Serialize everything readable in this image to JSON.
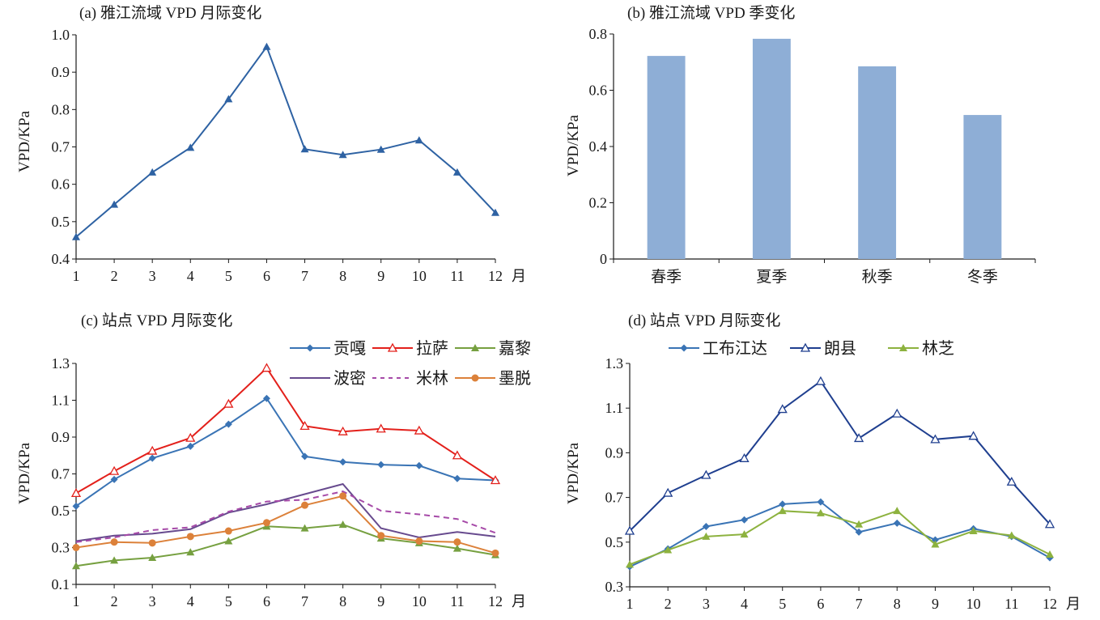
{
  "chart_data": [
    {
      "id": "a",
      "type": "line",
      "title": "(a) 雅江流域 VPD 月际变化",
      "xlabel": "",
      "ylabel": "VPD/KPa",
      "x_unit": "月",
      "categories": [
        "1",
        "2",
        "3",
        "4",
        "5",
        "6",
        "7",
        "8",
        "9",
        "10",
        "11",
        "12"
      ],
      "yticks": [
        "0.4",
        "0.5",
        "0.6",
        "0.7",
        "0.8",
        "0.9",
        "1.0"
      ],
      "ylim": [
        0.4,
        1.0
      ],
      "grid": false,
      "legend": null,
      "series": [
        {
          "name": "雅江流域",
          "color": "#2e62a3",
          "marker": "triangle",
          "dash": false,
          "values": [
            0.459,
            0.546,
            0.632,
            0.698,
            0.828,
            0.968,
            0.694,
            0.679,
            0.693,
            0.718,
            0.632,
            0.524
          ]
        }
      ]
    },
    {
      "id": "b",
      "type": "bar",
      "title": "(b) 雅江流域 VPD 季变化",
      "xlabel": "",
      "ylabel": "VPD/KPa",
      "categories": [
        "春季",
        "夏季",
        "秋季",
        "冬季"
      ],
      "yticks": [
        "0",
        "0.2",
        "0.4",
        "0.6",
        "0.8"
      ],
      "ylim": [
        0,
        0.8
      ],
      "grid": false,
      "bar_color": "#8eaed6",
      "values": [
        0.722,
        0.783,
        0.685,
        0.512
      ]
    },
    {
      "id": "c",
      "type": "line",
      "title": "(c) 站点 VPD 月际变化",
      "xlabel": "",
      "ylabel": "VPD/KPa",
      "x_unit": "月",
      "categories": [
        "1",
        "2",
        "3",
        "4",
        "5",
        "6",
        "7",
        "8",
        "9",
        "10",
        "11",
        "12"
      ],
      "yticks": [
        "0.1",
        "0.3",
        "0.5",
        "0.7",
        "0.9",
        "1.1",
        "1.3"
      ],
      "ylim": [
        0.1,
        1.3
      ],
      "grid": false,
      "legend": "top-right",
      "series": [
        {
          "name": "贡嘎",
          "color": "#3a74b5",
          "marker": "diamond",
          "dash": false,
          "values": [
            0.525,
            0.67,
            0.785,
            0.85,
            0.97,
            1.11,
            0.795,
            0.765,
            0.75,
            0.745,
            0.675,
            0.665
          ]
        },
        {
          "name": "拉萨",
          "color": "#e3201b",
          "marker": "triangle-open",
          "dash": false,
          "values": [
            0.595,
            0.715,
            0.825,
            0.895,
            1.08,
            1.275,
            0.96,
            0.93,
            0.945,
            0.935,
            0.8,
            0.665
          ]
        },
        {
          "name": "嘉黎",
          "color": "#76a040",
          "marker": "triangle",
          "dash": false,
          "values": [
            0.2,
            0.23,
            0.245,
            0.275,
            0.335,
            0.415,
            0.405,
            0.425,
            0.35,
            0.325,
            0.295,
            0.26
          ]
        },
        {
          "name": "波密",
          "color": "#674a8e",
          "marker": "none",
          "dash": false,
          "values": [
            0.335,
            0.365,
            0.375,
            0.4,
            0.49,
            0.535,
            0.59,
            0.645,
            0.405,
            0.355,
            0.385,
            0.36
          ]
        },
        {
          "name": "米林",
          "color": "#a64aa8",
          "marker": "none",
          "dash": true,
          "values": [
            0.33,
            0.355,
            0.395,
            0.41,
            0.495,
            0.55,
            0.56,
            0.605,
            0.5,
            0.48,
            0.455,
            0.38
          ]
        },
        {
          "name": "墨脱",
          "color": "#dc813a",
          "marker": "circle",
          "dash": false,
          "values": [
            0.3,
            0.33,
            0.325,
            0.36,
            0.39,
            0.435,
            0.53,
            0.58,
            0.365,
            0.335,
            0.33,
            0.27
          ]
        }
      ]
    },
    {
      "id": "d",
      "type": "line",
      "title": "(d) 站点 VPD 月际变化",
      "xlabel": "",
      "ylabel": "VPD/KPa",
      "x_unit": "月",
      "categories": [
        "1",
        "2",
        "3",
        "4",
        "5",
        "6",
        "7",
        "8",
        "9",
        "10",
        "11",
        "12"
      ],
      "yticks": [
        "0.3",
        "0.5",
        "0.7",
        "0.9",
        "1.1",
        "1.3"
      ],
      "ylim": [
        0.3,
        1.3
      ],
      "grid": false,
      "legend": "top",
      "series": [
        {
          "name": "工布江达",
          "color": "#3a74b5",
          "marker": "diamond",
          "dash": false,
          "values": [
            0.39,
            0.47,
            0.57,
            0.6,
            0.67,
            0.68,
            0.545,
            0.585,
            0.51,
            0.56,
            0.525,
            0.43
          ]
        },
        {
          "name": "朗县",
          "color": "#1f3f8f",
          "marker": "triangle-open",
          "dash": false,
          "values": [
            0.55,
            0.72,
            0.8,
            0.875,
            1.095,
            1.22,
            0.965,
            1.075,
            0.96,
            0.975,
            0.77,
            0.58
          ]
        },
        {
          "name": "林芝",
          "color": "#8db23f",
          "marker": "triangle",
          "dash": false,
          "values": [
            0.4,
            0.465,
            0.525,
            0.535,
            0.64,
            0.63,
            0.58,
            0.64,
            0.49,
            0.55,
            0.53,
            0.445
          ]
        }
      ]
    }
  ]
}
